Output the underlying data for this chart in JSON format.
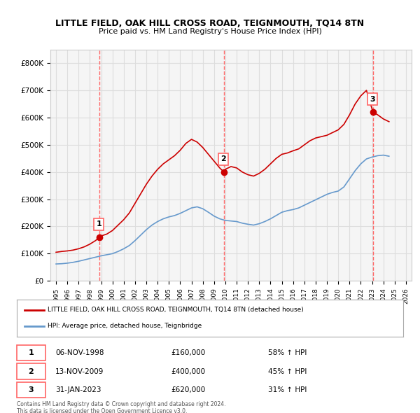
{
  "title": "LITTLE FIELD, OAK HILL CROSS ROAD, TEIGNMOUTH, TQ14 8TN",
  "subtitle": "Price paid vs. HM Land Registry's House Price Index (HPI)",
  "legend_line1": "LITTLE FIELD, OAK HILL CROSS ROAD, TEIGNMOUTH, TQ14 8TN (detached house)",
  "legend_line2": "HPI: Average price, detached house, Teignbridge",
  "footer1": "Contains HM Land Registry data © Crown copyright and database right 2024.",
  "footer2": "This data is licensed under the Open Government Licence v3.0.",
  "transactions": [
    {
      "num": 1,
      "date": "06-NOV-1998",
      "price": 160000,
      "hpi_pct": "58% ↑ HPI",
      "x": 1998.85
    },
    {
      "num": 2,
      "date": "13-NOV-2009",
      "price": 400000,
      "hpi_pct": "45% ↑ HPI",
      "x": 2009.87
    },
    {
      "num": 3,
      "date": "31-JAN-2023",
      "price": 620000,
      "hpi_pct": "31% ↑ HPI",
      "x": 2023.08
    }
  ],
  "vline_color": "#ff6666",
  "vline_style": "--",
  "red_line_color": "#cc0000",
  "blue_line_color": "#6699cc",
  "marker_color_red": "#cc0000",
  "marker_color_box": "#cc0000",
  "ylim": [
    0,
    850000
  ],
  "xlim_start": 1994.5,
  "xlim_end": 2026.5,
  "background_color": "#f5f5f5",
  "grid_color": "#dddddd",
  "red_series_x": [
    1995,
    1995.5,
    1996,
    1996.5,
    1997,
    1997.5,
    1998,
    1998.5,
    1998.85,
    1999,
    1999.5,
    2000,
    2000.5,
    2001,
    2001.5,
    2002,
    2002.5,
    2003,
    2003.5,
    2004,
    2004.5,
    2005,
    2005.5,
    2006,
    2006.5,
    2007,
    2007.5,
    2008,
    2008.5,
    2009,
    2009.5,
    2009.87,
    2010,
    2010.5,
    2011,
    2011.5,
    2012,
    2012.5,
    2013,
    2013.5,
    2014,
    2014.5,
    2015,
    2015.5,
    2016,
    2016.5,
    2017,
    2017.5,
    2018,
    2018.5,
    2019,
    2019.5,
    2020,
    2020.5,
    2021,
    2021.5,
    2022,
    2022.5,
    2023.08,
    2023.5,
    2024,
    2024.5
  ],
  "red_series_y": [
    105000,
    108000,
    110000,
    113000,
    118000,
    125000,
    135000,
    148000,
    160000,
    165000,
    172000,
    185000,
    205000,
    225000,
    250000,
    285000,
    320000,
    355000,
    385000,
    410000,
    430000,
    445000,
    460000,
    480000,
    505000,
    520000,
    510000,
    490000,
    465000,
    440000,
    415000,
    400000,
    410000,
    420000,
    415000,
    400000,
    390000,
    385000,
    395000,
    410000,
    430000,
    450000,
    465000,
    470000,
    478000,
    485000,
    500000,
    515000,
    525000,
    530000,
    535000,
    545000,
    555000,
    575000,
    610000,
    650000,
    680000,
    700000,
    620000,
    610000,
    595000,
    585000
  ],
  "blue_series_x": [
    1995,
    1995.5,
    1996,
    1996.5,
    1997,
    1997.5,
    1998,
    1998.5,
    1999,
    1999.5,
    2000,
    2000.5,
    2001,
    2001.5,
    2002,
    2002.5,
    2003,
    2003.5,
    2004,
    2004.5,
    2005,
    2005.5,
    2006,
    2006.5,
    2007,
    2007.5,
    2008,
    2008.5,
    2009,
    2009.5,
    2010,
    2010.5,
    2011,
    2011.5,
    2012,
    2012.5,
    2013,
    2013.5,
    2014,
    2014.5,
    2015,
    2015.5,
    2016,
    2016.5,
    2017,
    2017.5,
    2018,
    2018.5,
    2019,
    2019.5,
    2020,
    2020.5,
    2021,
    2021.5,
    2022,
    2022.5,
    2023,
    2023.5,
    2024,
    2024.5
  ],
  "blue_series_y": [
    62000,
    63000,
    65000,
    68000,
    72000,
    77000,
    82000,
    87000,
    92000,
    96000,
    100000,
    108000,
    118000,
    130000,
    148000,
    168000,
    188000,
    205000,
    218000,
    228000,
    235000,
    240000,
    248000,
    258000,
    268000,
    272000,
    265000,
    252000,
    238000,
    228000,
    222000,
    220000,
    218000,
    212000,
    208000,
    205000,
    210000,
    218000,
    228000,
    240000,
    252000,
    258000,
    262000,
    268000,
    278000,
    288000,
    298000,
    308000,
    318000,
    325000,
    330000,
    345000,
    375000,
    405000,
    430000,
    448000,
    455000,
    460000,
    462000,
    458000
  ]
}
